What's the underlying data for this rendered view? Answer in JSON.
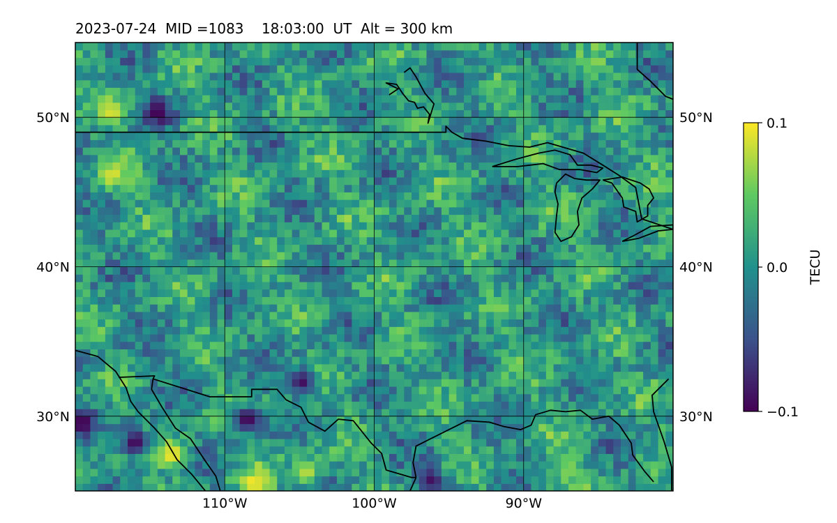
{
  "map": {
    "title": "2023-07-24  MID =1083    18:03:00  UT  Alt = 300 km",
    "extent": {
      "lon_min": -120,
      "lon_max": -80,
      "lat_min": 25,
      "lat_max": 55
    },
    "projection": "PlateCarree",
    "latitude_gridlines": [
      30,
      40,
      50
    ],
    "longitude_gridlines": [
      -110,
      -100,
      -90
    ],
    "lat_labels": [
      "30°N",
      "40°N",
      "50°N"
    ],
    "lon_labels": [
      "110°W",
      "100°W",
      "90°W"
    ],
    "colormap": "viridis",
    "colormap_stops": [
      "#440154",
      "#3b528b",
      "#21918c",
      "#5ec962",
      "#fde725"
    ],
    "colorbar": {
      "label": "TECU",
      "range": [
        -0.1,
        0.1
      ],
      "tick_values": [
        -0.1,
        0.0,
        0.1
      ],
      "tick_labels": [
        "−0.1",
        "0.0",
        "0.1"
      ]
    },
    "grid_cell_degrees": 0.5,
    "features": [
      "coastlines",
      "country borders",
      "Great Lakes"
    ],
    "notable_anomalies": [
      {
        "lon": -113.5,
        "lat": 27.5,
        "value": 0.1
      },
      {
        "lon": -108,
        "lat": 25.5,
        "value": 0.1
      },
      {
        "lon": -104.5,
        "lat": 26.3,
        "value": 0.08
      },
      {
        "lon": -117.5,
        "lat": 50.4,
        "value": 0.09
      },
      {
        "lon": -117.5,
        "lat": 46.2,
        "value": 0.09
      },
      {
        "lon": -114.5,
        "lat": 50.4,
        "value": -0.1
      },
      {
        "lon": -108.5,
        "lat": 29.8,
        "value": -0.1
      },
      {
        "lon": -119.5,
        "lat": 29.6,
        "value": -0.1
      },
      {
        "lon": -116,
        "lat": 28.3,
        "value": -0.1
      },
      {
        "lon": -104.8,
        "lat": 32.3,
        "value": -0.09
      },
      {
        "lon": -87,
        "lat": 26.5,
        "value": 0.06
      },
      {
        "lon": -96.2,
        "lat": 25.8,
        "value": -0.09
      }
    ]
  }
}
